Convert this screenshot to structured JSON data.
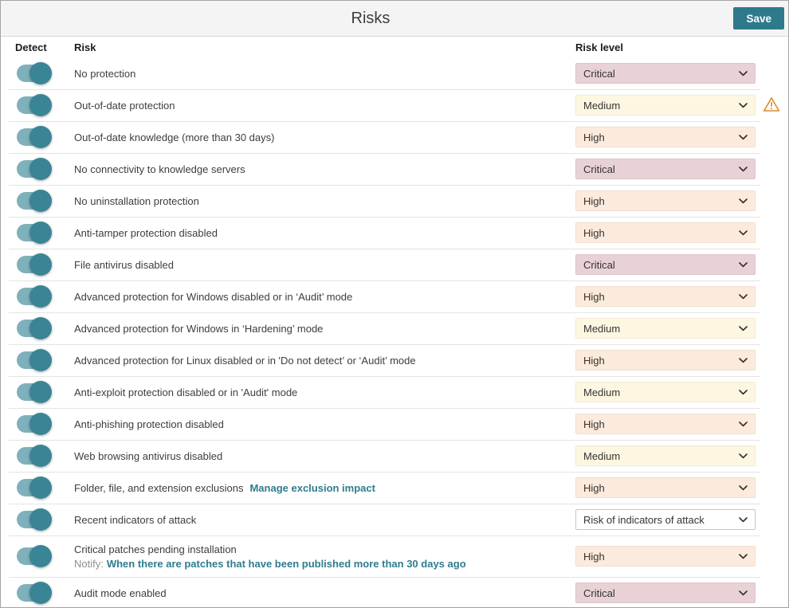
{
  "header": {
    "title": "Risks",
    "save_label": "Save"
  },
  "table": {
    "columns": {
      "detect": "Detect",
      "risk": "Risk",
      "risk_level": "Risk level"
    },
    "rows": [
      {
        "label": "No protection",
        "level": "Critical",
        "style": "critical",
        "detect_on": true
      },
      {
        "label": "Out-of-date protection",
        "level": "Medium",
        "style": "medium",
        "detect_on": true,
        "warning": true
      },
      {
        "label": "Out-of-date knowledge (more than 30 days)",
        "level": "High",
        "style": "high",
        "detect_on": true
      },
      {
        "label": "No connectivity to knowledge servers",
        "level": "Critical",
        "style": "critical",
        "detect_on": true
      },
      {
        "label": "No uninstallation protection",
        "level": "High",
        "style": "high",
        "detect_on": true
      },
      {
        "label": "Anti-tamper protection disabled",
        "level": "High",
        "style": "high",
        "detect_on": true
      },
      {
        "label": "File antivirus disabled",
        "level": "Critical",
        "style": "critical",
        "detect_on": true
      },
      {
        "label": "Advanced protection for Windows disabled or in ‘Audit’ mode",
        "level": "High",
        "style": "high",
        "detect_on": true
      },
      {
        "label": "Advanced protection for Windows in ‘Hardening’ mode",
        "level": "Medium",
        "style": "medium",
        "detect_on": true
      },
      {
        "label": "Advanced protection for Linux disabled or in 'Do not detect’ or ‘Audit’ mode",
        "level": "High",
        "style": "high",
        "detect_on": true
      },
      {
        "label": "Anti-exploit protection disabled or in 'Audit' mode",
        "level": "Medium",
        "style": "medium",
        "detect_on": true
      },
      {
        "label": "Anti-phishing protection disabled",
        "level": "High",
        "style": "high",
        "detect_on": true
      },
      {
        "label": "Web browsing antivirus disabled",
        "level": "Medium",
        "style": "medium",
        "detect_on": true
      },
      {
        "label": "Folder, file, and extension exclusions",
        "link": "Manage exclusion impact",
        "level": "High",
        "style": "high",
        "detect_on": true
      },
      {
        "label": "Recent indicators of attack",
        "level": "Risk of indicators of attack",
        "style": "default",
        "detect_on": true
      },
      {
        "label": "Critical patches pending installation",
        "notify_prefix": "Notify:",
        "notify_link": "When there are patches that have been published more than 30 days ago",
        "level": "High",
        "style": "high",
        "detect_on": true,
        "tall": true
      },
      {
        "label": "Audit mode enabled",
        "level": "Critical",
        "style": "critical",
        "detect_on": true
      }
    ]
  },
  "icons": {
    "chevron_down": "chevron-down-icon",
    "warning_triangle": "warning-triangle-icon",
    "toggle_on": "toggle-on"
  },
  "colors": {
    "accent_teal": "#2e7a8b",
    "link_teal": "#2e7d8e",
    "toggle_track": "#7eb1bb",
    "toggle_knob": "#3a8595",
    "level_critical_bg": "#e9d2d6",
    "level_high_bg": "#fcebdc",
    "level_medium_bg": "#fdf7e2",
    "level_default_bg": "#ffffff",
    "warning_orange": "#df8a30"
  }
}
